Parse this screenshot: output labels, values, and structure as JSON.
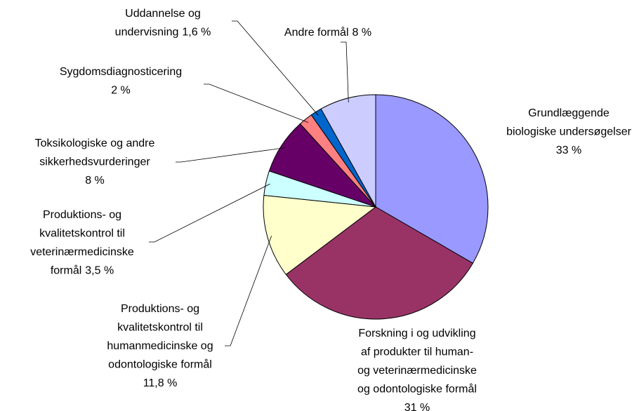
{
  "chart_data": {
    "type": "pie",
    "categories": [
      [
        "Grundlæggende",
        "biologiske undersøgelser"
      ],
      [
        "Forskning i og udvikling",
        "af produkter til human-",
        "og veterinærmedicinske",
        "og odontologiske formål"
      ],
      [
        "Produktions- og",
        "kvalitetskontrol til",
        "humanmedicinske og",
        "odontologiske formål"
      ],
      [
        "Produktions- og",
        "kvalitetskontrol til",
        "veterinærmedicinske",
        "formål"
      ],
      [
        "Toksikologiske og andre",
        "sikkerhedsvurderinger"
      ],
      [
        "Sygdomsdiagnosticering"
      ],
      [
        "Uddannelse og",
        "undervisning"
      ],
      [
        "Andre formål"
      ]
    ],
    "values": [
      33,
      31,
      11.8,
      3.5,
      8,
      2,
      1.6,
      8
    ],
    "value_labels": [
      "33 %",
      "31 %",
      "11,8 %",
      "3,5 %",
      "8 %",
      "2 %",
      "1,6 %",
      "8 %"
    ],
    "colors": [
      "#9999ff",
      "#993366",
      "#ffffcc",
      "#ccffff",
      "#660066",
      "#ff8080",
      "#0066cc",
      "#ccccff"
    ]
  }
}
